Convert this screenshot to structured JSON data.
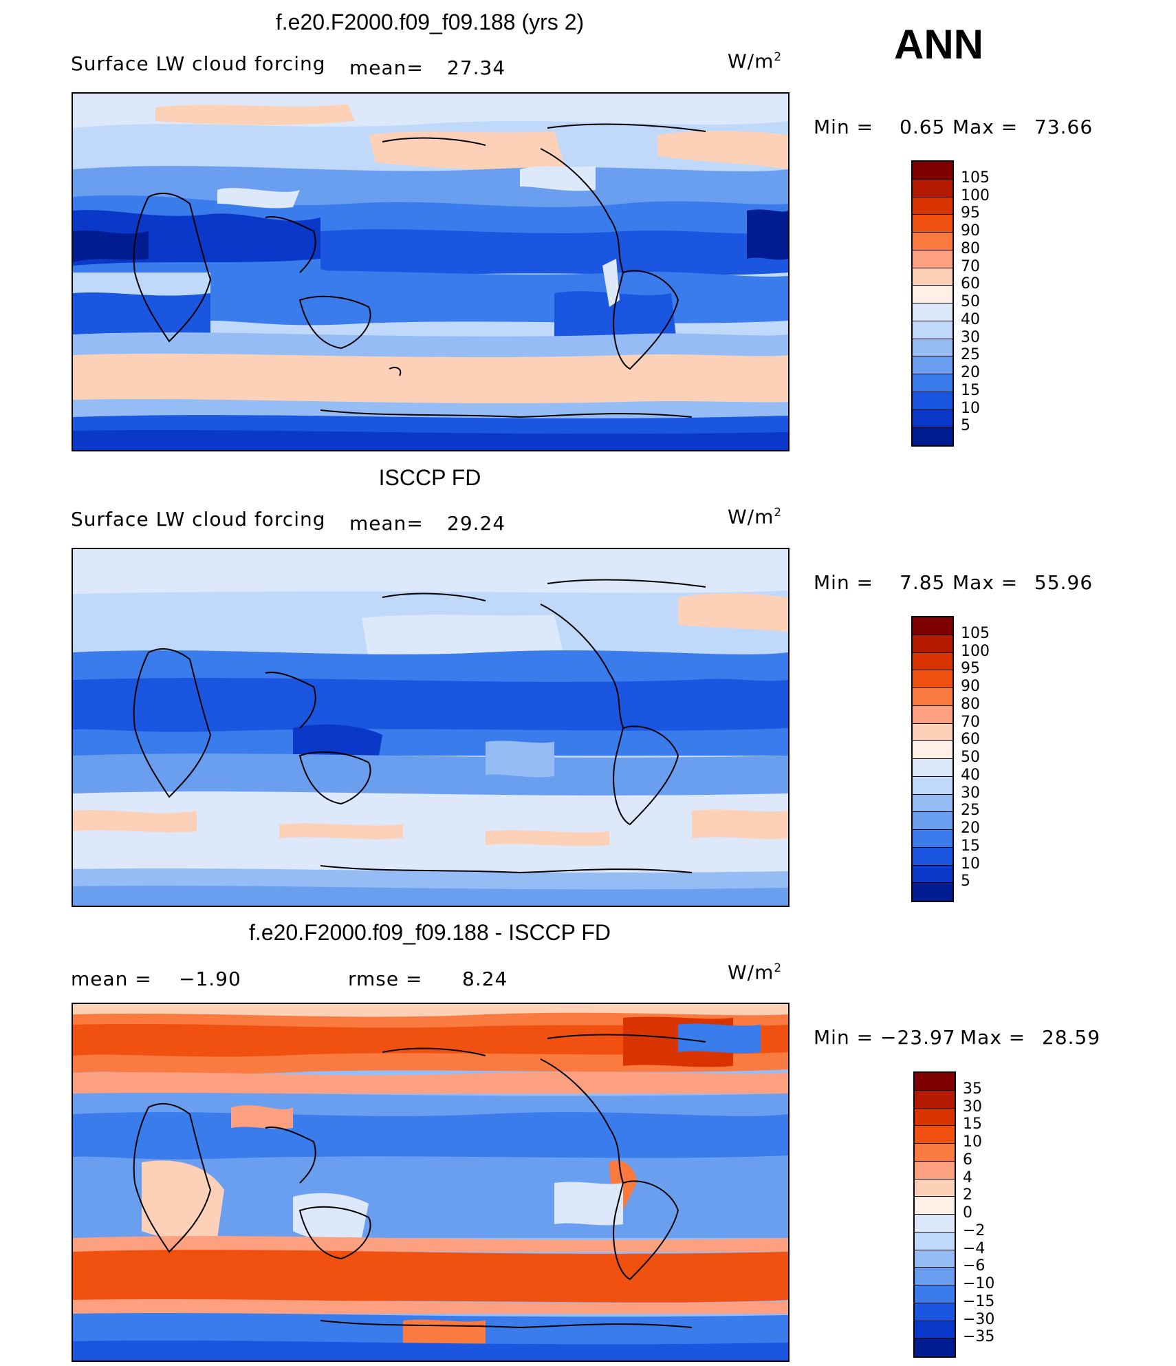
{
  "season": "ANN",
  "units": "W/m",
  "units_sup": "2",
  "panels": [
    {
      "title": "f.e20.F2000.f09_f09.188 (yrs 2)",
      "variable": "Surface LW cloud forcing",
      "mean_label": "mean=",
      "mean_value": "27.34",
      "min_label": "Min  =",
      "min_value": "0.65",
      "max_label": "Max  =",
      "max_value": "73.66",
      "colorbar": {
        "labels": [
          "105",
          "100",
          "95",
          "90",
          "80",
          "70",
          "60",
          "50",
          "40",
          "30",
          "25",
          "20",
          "15",
          "10",
          "5"
        ],
        "colors": [
          "#7f0000",
          "#b31a00",
          "#d93300",
          "#f05010",
          "#fa7a40",
          "#fca080",
          "#fdd0b8",
          "#fef0e6",
          "#dde9fb",
          "#c0d8fa",
          "#96bcf5",
          "#6a9ff0",
          "#3b7cec",
          "#1a56e0",
          "#0a38c8",
          "#001c90"
        ]
      }
    },
    {
      "title": "ISCCP FD",
      "variable": "Surface LW cloud forcing",
      "mean_label": "mean=",
      "mean_value": "29.24",
      "min_label": "Min  =",
      "min_value": "7.85",
      "max_label": "Max  =",
      "max_value": "55.96",
      "colorbar": {
        "labels": [
          "105",
          "100",
          "95",
          "90",
          "80",
          "70",
          "60",
          "50",
          "40",
          "30",
          "25",
          "20",
          "15",
          "10",
          "5"
        ],
        "colors": [
          "#7f0000",
          "#b31a00",
          "#d93300",
          "#f05010",
          "#fa7a40",
          "#fca080",
          "#fdd0b8",
          "#fef0e6",
          "#dde9fb",
          "#c0d8fa",
          "#96bcf5",
          "#6a9ff0",
          "#3b7cec",
          "#1a56e0",
          "#0a38c8",
          "#001c90"
        ]
      }
    },
    {
      "title": "f.e20.F2000.f09_f09.188 - ISCCP FD",
      "mean_label": "mean  =",
      "mean_value": "−1.90",
      "rmse_label": "rmse  =",
      "rmse_value": "8.24",
      "min_label": "Min  =",
      "min_value": "−23.97",
      "max_label": "Max  =",
      "max_value": "28.59",
      "colorbar": {
        "labels": [
          "35",
          "30",
          "15",
          "10",
          "6",
          "4",
          "2",
          "0",
          "−2",
          "−4",
          "−6",
          "−10",
          "−15",
          "−30",
          "−35"
        ],
        "colors": [
          "#7f0000",
          "#b31a00",
          "#d93300",
          "#f05010",
          "#fa7a40",
          "#fca080",
          "#fdd0b8",
          "#fef0e6",
          "#dde9fb",
          "#c0d8fa",
          "#96bcf5",
          "#6a9ff0",
          "#3b7cec",
          "#1a56e0",
          "#0a38c8",
          "#001c90"
        ]
      }
    }
  ]
}
